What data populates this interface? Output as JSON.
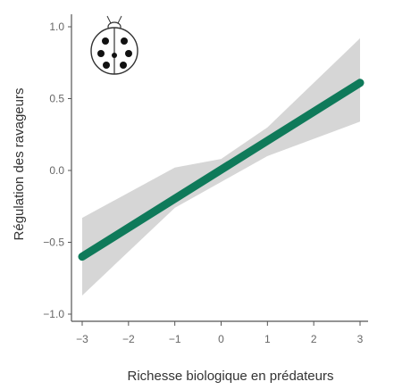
{
  "chart_data": {
    "type": "line",
    "title": "",
    "xlabel": "Richesse biologique en prédateurs",
    "ylabel": "Régulation des ravageurs",
    "xlim": [
      -3,
      3
    ],
    "ylim": [
      -1.0,
      1.0
    ],
    "x_ticks": [
      -3,
      -2,
      -1,
      0,
      1,
      2,
      3
    ],
    "x_tick_labels": [
      "−3",
      "−2",
      "−1",
      "0",
      "1",
      "2",
      "3"
    ],
    "y_ticks": [
      -1.0,
      -0.5,
      0.0,
      0.5,
      1.0
    ],
    "y_tick_labels": [
      "−1.0",
      "−0.5",
      "0.0",
      "0.5",
      "1.0"
    ],
    "grid": false,
    "series": [
      {
        "values": [
          [
            -3,
            -0.6
          ],
          [
            3,
            0.61
          ]
        ],
        "color": "#0f7a5a",
        "ci_lower": [
          [
            -3,
            -0.87
          ],
          [
            -1,
            -0.26
          ],
          [
            0,
            -0.08
          ],
          [
            1,
            0.1
          ],
          [
            3,
            0.34
          ]
        ],
        "ci_upper": [
          [
            -3,
            -0.33
          ],
          [
            -1,
            0.02
          ],
          [
            0,
            0.08
          ],
          [
            1,
            0.3
          ],
          [
            3,
            0.92
          ]
        ]
      }
    ],
    "ci_color": "#c8c8c8",
    "icon": "ladybug-icon"
  }
}
